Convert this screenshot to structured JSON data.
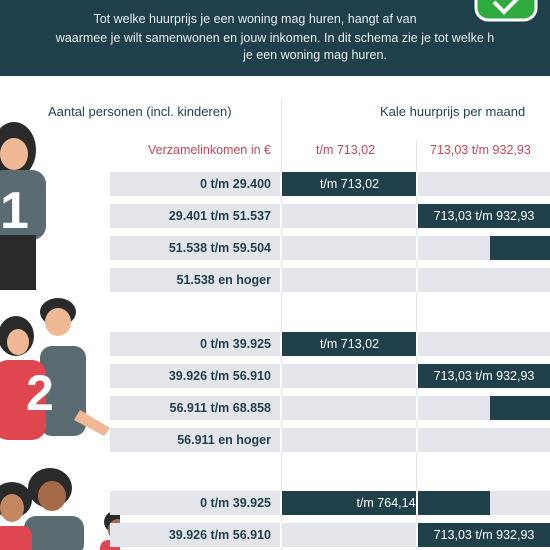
{
  "header": {
    "lines": [
      "Tot welke huurprijs je een woning mag huren, hangt af van",
      "waarmee je wilt samenwonen en jouw inkomen. In dit schema zie je tot welke h",
      "je een woning mag huren."
    ]
  },
  "table": {
    "columns": [
      "Aantal personen (incl. kinderen)",
      "Kale huurprijs per maand"
    ],
    "subheaders": [
      "Verzamelinkomen in €",
      "t/m 713,02",
      "713,03 t/m 932,93"
    ],
    "groups": [
      {
        "persons": "1",
        "rows": [
          {
            "income": "0 t/m 29.400",
            "rent": "t/m 713,02"
          },
          {
            "income": "29.401 t/m 51.537",
            "rent": "713,03 t/m 932,93"
          },
          {
            "income": "51.538 t/m 59.504"
          },
          {
            "income": "51.538 en hoger"
          }
        ]
      },
      {
        "persons": "2",
        "rows": [
          {
            "income": "0 t/m 39.925",
            "rent": "t/m 713,02"
          },
          {
            "income": "39.926 t/m 56.910",
            "rent": "713,03 t/m 932,93"
          },
          {
            "income": "56.911 t/m 68.858"
          },
          {
            "income": "56.911 en hoger"
          }
        ]
      },
      {
        "rows": [
          {
            "income": "0 t/m 39.925",
            "rent": "t/m 764,14"
          },
          {
            "income": "39.926 t/m 56.910",
            "rent": "713,03 t/m 932,93"
          }
        ]
      }
    ]
  }
}
